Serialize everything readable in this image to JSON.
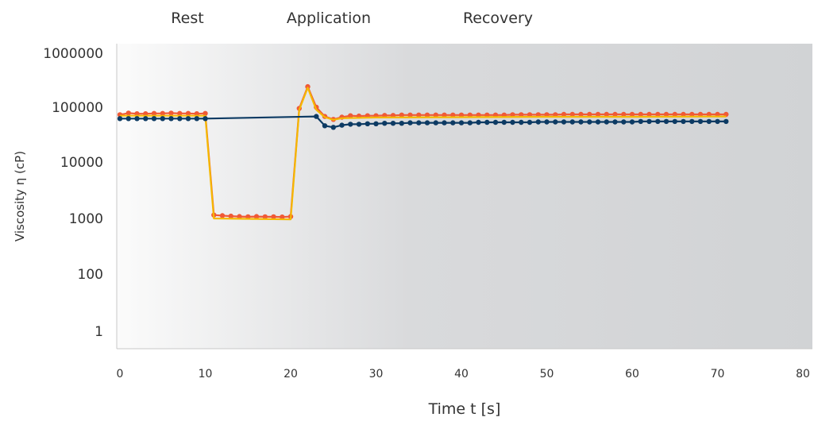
{
  "chart_data": {
    "type": "line",
    "phases": [
      "Rest",
      "Application",
      "Recovery"
    ],
    "xlabel": "Time t [s]",
    "ylabel": "Viscosity η (cP)",
    "xlim": [
      0,
      80
    ],
    "x_ticks": [
      0,
      10,
      20,
      30,
      40,
      50,
      60,
      70,
      80
    ],
    "y_ticks": [
      1,
      100,
      1000,
      10000,
      100000,
      1000000
    ],
    "y_tick_labels": [
      "1",
      "100",
      "1000",
      "10000",
      "100000",
      "1000000"
    ],
    "y_scale": "log",
    "grid": false,
    "background": "gradient light-to-gray",
    "series": [
      {
        "color": "#f05a36",
        "marker": "circle",
        "x": [
          0,
          1,
          2,
          3,
          4,
          5,
          6,
          7,
          8,
          9,
          10,
          11,
          12,
          13,
          14,
          15,
          16,
          17,
          18,
          19,
          20,
          21,
          22,
          23,
          24,
          25,
          26,
          27,
          28,
          29,
          30,
          31,
          32,
          33,
          34,
          35,
          36,
          37,
          38,
          39,
          40,
          41,
          42,
          43,
          44,
          45,
          46,
          47,
          48,
          49,
          50,
          51,
          52,
          53,
          54,
          55,
          56,
          57,
          58,
          59,
          60,
          61,
          62,
          63,
          64,
          65,
          66,
          67,
          68,
          69,
          70,
          71
        ],
        "y": [
          73000,
          78000,
          76000,
          76000,
          77000,
          77000,
          78000,
          77000,
          77000,
          76000,
          77000,
          1150,
          1120,
          1100,
          1080,
          1070,
          1080,
          1070,
          1070,
          1060,
          1080,
          95000,
          240000,
          100000,
          68000,
          60000,
          66000,
          70000,
          69000,
          70000,
          70000,
          71000,
          71000,
          72000,
          72000,
          72000,
          72000,
          72000,
          72000,
          72000,
          72000,
          72000,
          72000,
          72000,
          72000,
          72000,
          73000,
          73000,
          73000,
          73000,
          73000,
          73000,
          74000,
          74000,
          74000,
          74000,
          74000,
          74000,
          74000,
          74000,
          74000,
          74000,
          74000,
          74000,
          74000,
          74000,
          74000,
          74000,
          74000,
          74000,
          74000,
          74000
        ]
      },
      {
        "color": "#f5b800",
        "marker": "none",
        "x": [
          0,
          10,
          11,
          20,
          21,
          22,
          23,
          24,
          25,
          26,
          30,
          40,
          50,
          60,
          71
        ],
        "y": [
          70000,
          70000,
          1000,
          960,
          90000,
          230000,
          90000,
          66000,
          59000,
          63000,
          65000,
          66000,
          67000,
          67000,
          68000
        ]
      },
      {
        "color": "#0c3a63",
        "marker": "circle",
        "x": [
          0,
          1,
          2,
          3,
          4,
          5,
          6,
          7,
          8,
          9,
          10,
          23,
          24,
          25,
          26,
          27,
          28,
          29,
          30,
          31,
          32,
          33,
          34,
          35,
          36,
          37,
          38,
          39,
          40,
          41,
          42,
          43,
          44,
          45,
          46,
          47,
          48,
          49,
          50,
          51,
          52,
          53,
          54,
          55,
          56,
          57,
          58,
          59,
          60,
          61,
          62,
          63,
          64,
          65,
          66,
          67,
          68,
          69,
          70,
          71
        ],
        "y": [
          62000,
          62000,
          62000,
          62000,
          62000,
          62000,
          62000,
          62000,
          62000,
          62000,
          62000,
          68000,
          46000,
          43000,
          47000,
          49000,
          49000,
          50000,
          50000,
          51000,
          51000,
          51000,
          52000,
          52000,
          52000,
          52000,
          52000,
          52000,
          52000,
          52000,
          53000,
          53000,
          53000,
          53000,
          53000,
          53000,
          53000,
          54000,
          54000,
          54000,
          54000,
          54000,
          54000,
          54000,
          54000,
          54000,
          54000,
          54000,
          54000,
          55000,
          55000,
          55000,
          55000,
          55000,
          55000,
          55000,
          55000,
          55000,
          55000,
          55000
        ]
      }
    ]
  }
}
